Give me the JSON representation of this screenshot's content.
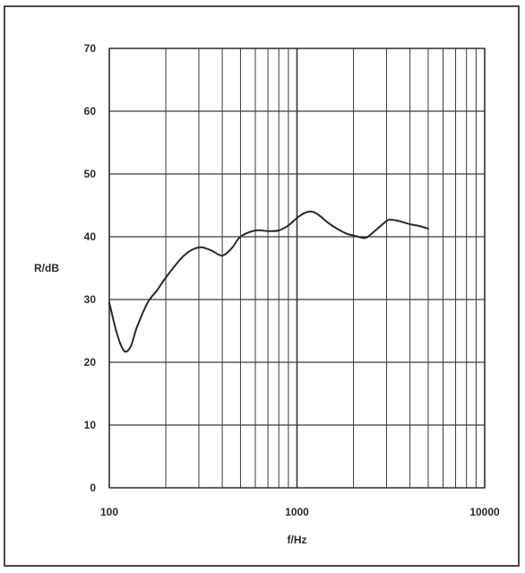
{
  "chart_data": {
    "type": "line",
    "title": "",
    "xlabel": "f/Hz",
    "ylabel": "R/dB",
    "xscale": "log",
    "xlim": [
      100,
      10000
    ],
    "ylim": [
      0,
      70
    ],
    "grid": true,
    "x_tick_labels": [
      "100",
      "1000",
      "10000"
    ],
    "y_tick_labels": [
      "0",
      "10",
      "20",
      "30",
      "40",
      "50",
      "60",
      "70"
    ],
    "series": [
      {
        "color": "#2a2a2a",
        "x": [
          100,
          110,
          120,
          130,
          140,
          160,
          180,
          200,
          250,
          300,
          350,
          400,
          450,
          500,
          600,
          700,
          800,
          900,
          1000,
          1100,
          1200,
          1300,
          1500,
          1800,
          2000,
          2300,
          2500,
          3000,
          3200,
          3500,
          4000,
          4500,
          5000
        ],
        "y": [
          29.5,
          24.5,
          21.8,
          22.5,
          25.5,
          29.5,
          31.5,
          33.5,
          37,
          38.3,
          37.8,
          37,
          38.2,
          40,
          41,
          40.9,
          41,
          41.8,
          43,
          43.8,
          44,
          43.5,
          42,
          40.6,
          40.2,
          39.8,
          40.5,
          42.5,
          42.7,
          42.5,
          42,
          41.7,
          41.3
        ]
      }
    ]
  }
}
